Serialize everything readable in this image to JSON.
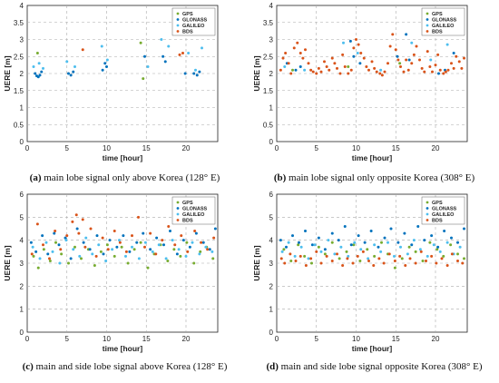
{
  "colors": {
    "GPS": "#77ac30",
    "GLONASS": "#0072bd",
    "GALILEO": "#4dbeee",
    "BDS": "#d95319"
  },
  "chart_data": [
    {
      "type": "scatter",
      "caption_tag": "(a)",
      "caption_text": " main lobe signal only above Korea (128° E)",
      "xlabel": "time [hour]",
      "ylabel": "UERE [m]",
      "xlim": [
        0,
        24
      ],
      "ylim": [
        0,
        4
      ],
      "xticks": [
        0,
        5,
        10,
        15,
        20
      ],
      "yticks": [
        0,
        0.5,
        1,
        1.5,
        2,
        2.5,
        3,
        3.5,
        4
      ],
      "grid": true,
      "legend_position": "top-right",
      "series": [
        {
          "name": "GPS",
          "x": [
            1.3,
            14.3,
            14.6
          ],
          "y": [
            2.6,
            2.9,
            1.85
          ]
        },
        {
          "name": "GLONASS",
          "x": [
            1.0,
            1.2,
            1.4,
            1.6,
            1.8,
            5.2,
            5.5,
            5.8,
            9.5,
            9.8,
            10.0,
            14.8,
            17.1,
            17.4,
            19.9,
            21.0,
            21.4,
            21.7
          ],
          "y": [
            2.0,
            1.93,
            1.9,
            1.95,
            2.05,
            2.0,
            1.95,
            2.05,
            2.1,
            2.3,
            2.2,
            2.5,
            2.5,
            2.35,
            2.0,
            2.0,
            1.95,
            2.05
          ]
        },
        {
          "name": "GALILEO",
          "x": [
            0.8,
            1.5,
            2.0,
            5.0,
            6.0,
            9.4,
            10.1,
            15.2,
            16.9,
            17.8,
            20.3,
            21.2,
            22.0
          ],
          "y": [
            2.2,
            2.3,
            2.15,
            2.35,
            2.2,
            2.8,
            2.4,
            2.2,
            3.0,
            2.8,
            2.6,
            2.1,
            2.75
          ]
        },
        {
          "name": "BDS",
          "x": [
            7.0,
            19.2,
            19.6
          ],
          "y": [
            2.7,
            2.55,
            2.6
          ]
        }
      ]
    },
    {
      "type": "scatter",
      "caption_tag": "(b)",
      "caption_text": " main lobe signal only opposite Korea (308° E)",
      "xlabel": "time [hour]",
      "ylabel": "UERE [m]",
      "xlim": [
        0,
        24
      ],
      "ylim": [
        0,
        4
      ],
      "xticks": [
        0,
        5,
        10,
        15,
        20
      ],
      "yticks": [
        0,
        0.5,
        1,
        1.5,
        2,
        2.5,
        3,
        3.5,
        4
      ],
      "grid": true,
      "legend_position": "top-right",
      "series": [
        {
          "name": "GPS",
          "x": [
            2.0,
            9.0,
            15.5
          ],
          "y": [
            2.1,
            2.2,
            2.3
          ]
        },
        {
          "name": "GLONASS",
          "x": [
            1.3,
            2.4,
            3.0,
            9.3,
            9.7,
            10.5,
            15.2,
            16.3,
            16.7,
            20.4,
            21.2,
            22.3
          ],
          "y": [
            2.3,
            2.1,
            2.2,
            2.95,
            2.5,
            2.3,
            2.5,
            3.15,
            2.4,
            2.0,
            2.1,
            2.6
          ]
        },
        {
          "name": "GALILEO",
          "x": [
            1.0,
            3.5,
            8.4,
            10.2,
            13.1,
            17.0,
            19.4,
            21.5
          ],
          "y": [
            2.2,
            2.1,
            2.9,
            2.6,
            2.1,
            2.9,
            2.4,
            2.85
          ]
        },
        {
          "name": "BDS",
          "x": [
            0.5,
            0.8,
            1.1,
            1.5,
            1.8,
            2.2,
            2.6,
            3.0,
            3.3,
            3.6,
            4.0,
            4.3,
            4.6,
            5.0,
            5.3,
            5.6,
            6.0,
            6.3,
            6.6,
            7.0,
            7.3,
            7.6,
            8.0,
            8.3,
            8.6,
            9.0,
            9.4,
            9.7,
            10.0,
            10.3,
            10.6,
            11.0,
            11.3,
            11.6,
            12.0,
            12.3,
            12.6,
            13.0,
            13.3,
            13.6,
            14.0,
            14.3,
            14.6,
            15.0,
            15.3,
            15.6,
            16.0,
            16.3,
            16.6,
            17.0,
            17.3,
            17.6,
            18.0,
            18.3,
            18.6,
            19.0,
            19.3,
            19.6,
            20.0,
            20.3,
            20.6,
            21.0,
            21.3,
            21.6,
            22.0,
            22.3,
            22.6,
            23.0,
            23.3,
            23.6
          ],
          "y": [
            2.1,
            2.45,
            2.6,
            2.3,
            2.0,
            2.75,
            2.9,
            2.6,
            2.45,
            2.7,
            2.3,
            2.1,
            2.05,
            2.0,
            2.15,
            2.05,
            2.35,
            2.2,
            2.1,
            2.45,
            2.3,
            2.15,
            2.0,
            2.55,
            2.2,
            2.0,
            2.1,
            2.75,
            3.0,
            2.85,
            2.6,
            2.45,
            2.2,
            2.1,
            2.35,
            2.15,
            2.05,
            2.0,
            1.95,
            2.05,
            2.3,
            2.8,
            3.15,
            2.7,
            2.4,
            2.2,
            2.05,
            2.4,
            2.1,
            2.3,
            2.55,
            2.8,
            2.4,
            2.15,
            2.05,
            2.65,
            2.2,
            2.05,
            2.25,
            2.55,
            2.1,
            2.0,
            2.05,
            2.1,
            2.3,
            2.15,
            2.5,
            2.35,
            2.15,
            2.45
          ]
        }
      ]
    },
    {
      "type": "scatter",
      "caption_tag": "(c)",
      "caption_text": " main and side lobe signal above Korea (128° E)",
      "xlabel": "time [hour]",
      "ylabel": "UERE [m]",
      "xlim": [
        0,
        24
      ],
      "ylim": [
        0,
        6
      ],
      "xticks": [
        0,
        5,
        10,
        15,
        20
      ],
      "yticks": [
        0,
        1,
        2,
        3,
        4,
        5,
        6
      ],
      "grid": true,
      "legend_position": "top-right",
      "series": [
        {
          "name": "GPS",
          "x": [
            0.8,
            1.4,
            2.1,
            2.9,
            3.6,
            4.3,
            5.2,
            6.0,
            6.8,
            7.7,
            8.5,
            9.3,
            10.1,
            11.0,
            11.9,
            12.7,
            13.5,
            14.3,
            15.2,
            16.0,
            16.8,
            17.7,
            18.5,
            19.3,
            20.1,
            21.0,
            21.8,
            22.6,
            23.4
          ],
          "y": [
            3.3,
            2.8,
            3.6,
            3.1,
            3.9,
            3.4,
            3.0,
            3.7,
            3.2,
            3.6,
            2.9,
            3.5,
            3.8,
            3.3,
            3.7,
            3.0,
            3.6,
            3.9,
            2.8,
            3.4,
            3.8,
            3.1,
            3.6,
            3.3,
            3.9,
            3.0,
            3.5,
            3.7,
            3.2
          ]
        },
        {
          "name": "GLONASS",
          "x": [
            0.5,
            1.1,
            1.9,
            2.6,
            3.4,
            4.0,
            4.8,
            5.5,
            6.3,
            7.1,
            7.9,
            8.8,
            9.6,
            10.4,
            11.3,
            12.1,
            12.9,
            13.8,
            14.6,
            15.5,
            16.3,
            17.2,
            18.0,
            18.9,
            19.7,
            20.5,
            21.3,
            22.2,
            23.0,
            23.7
          ],
          "y": [
            3.9,
            3.5,
            4.2,
            3.4,
            4.3,
            3.8,
            4.1,
            3.2,
            4.5,
            3.9,
            3.6,
            4.2,
            3.4,
            4.0,
            3.7,
            4.2,
            3.5,
            3.9,
            4.3,
            3.6,
            4.1,
            3.8,
            4.4,
            3.4,
            4.0,
            3.7,
            4.3,
            3.9,
            3.6,
            4.5
          ]
        },
        {
          "name": "GALILEO",
          "x": [
            0.7,
            1.6,
            2.4,
            3.2,
            4.1,
            4.9,
            5.8,
            6.6,
            7.4,
            8.2,
            9.0,
            9.9,
            10.7,
            11.6,
            12.4,
            13.2,
            14.1,
            14.9,
            15.8,
            16.6,
            17.5,
            18.3,
            19.1,
            20.0,
            20.8,
            21.7,
            22.5,
            23.3
          ],
          "y": [
            3.7,
            3.2,
            3.9,
            3.5,
            3.0,
            4.0,
            3.6,
            3.3,
            4.1,
            3.4,
            3.8,
            3.1,
            3.6,
            4.0,
            3.3,
            3.7,
            3.2,
            3.9,
            3.5,
            3.8,
            3.2,
            4.0,
            3.6,
            3.3,
            3.9,
            3.4,
            3.7,
            3.5
          ]
        },
        {
          "name": "BDS",
          "x": [
            0.6,
            1.3,
            2.0,
            2.8,
            3.5,
            4.2,
            5.0,
            5.7,
            6.2,
            6.5,
            7.0,
            7.3,
            8.0,
            8.7,
            9.5,
            10.2,
            11.0,
            11.7,
            12.5,
            13.2,
            14.0,
            14.8,
            15.5,
            16.2,
            17.0,
            17.8,
            18.6,
            19.4,
            20.2,
            21.1,
            21.9,
            22.7,
            23.5
          ],
          "y": [
            3.4,
            4.7,
            3.8,
            3.2,
            4.4,
            3.6,
            4.2,
            4.8,
            5.1,
            4.3,
            4.9,
            3.7,
            4.5,
            3.3,
            4.1,
            3.6,
            4.4,
            3.9,
            3.5,
            4.2,
            5.0,
            3.7,
            4.3,
            3.4,
            4.0,
            4.6,
            3.8,
            4.2,
            3.5,
            4.4,
            3.9,
            3.6,
            4.1
          ]
        }
      ]
    },
    {
      "type": "scatter",
      "caption_tag": "(d)",
      "caption_text": " main and side lobe signal opposite Korea (308° E)",
      "xlabel": "time [hour]",
      "ylabel": "UERE [m]",
      "xlim": [
        0,
        24
      ],
      "ylim": [
        0,
        6
      ],
      "xticks": [
        0,
        5,
        10,
        15,
        20
      ],
      "yticks": [
        0,
        1,
        2,
        3,
        4,
        5,
        6
      ],
      "grid": true,
      "legend_position": "top-right",
      "series": [
        {
          "name": "GPS",
          "x": [
            0.9,
            1.8,
            2.7,
            3.5,
            4.4,
            5.3,
            6.1,
            7.0,
            7.9,
            8.8,
            9.7,
            10.5,
            11.4,
            12.3,
            13.2,
            14.0,
            14.9,
            15.8,
            16.7,
            17.5,
            18.4,
            19.3,
            20.2,
            21.0,
            21.9,
            22.8,
            23.6
          ],
          "y": [
            3.6,
            3.1,
            3.8,
            3.3,
            3.0,
            3.7,
            3.4,
            3.9,
            3.2,
            3.5,
            3.8,
            3.1,
            3.6,
            3.3,
            3.9,
            3.4,
            2.8,
            3.2,
            3.7,
            3.5,
            3.1,
            3.9,
            3.6,
            3.3,
            3.8,
            3.4,
            3.2
          ]
        },
        {
          "name": "GLONASS",
          "x": [
            0.5,
            1.2,
            2.0,
            2.8,
            3.6,
            4.5,
            5.3,
            6.1,
            7.0,
            7.8,
            8.6,
            9.4,
            10.3,
            11.1,
            11.9,
            12.8,
            13.6,
            14.4,
            15.3,
            16.1,
            17.0,
            17.8,
            18.6,
            19.5,
            20.3,
            21.1,
            22.0,
            22.8,
            23.6
          ],
          "y": [
            4.0,
            3.7,
            4.2,
            3.9,
            4.4,
            3.8,
            4.1,
            3.6,
            4.3,
            4.0,
            4.6,
            3.8,
            4.2,
            3.9,
            4.4,
            3.7,
            4.1,
            4.5,
            3.9,
            4.3,
            3.8,
            4.6,
            4.0,
            4.2,
            3.7,
            4.4,
            4.1,
            3.9,
            4.5
          ]
        },
        {
          "name": "GALILEO",
          "x": [
            0.7,
            1.5,
            2.3,
            3.1,
            4.0,
            4.8,
            5.6,
            6.5,
            7.3,
            8.1,
            9.0,
            9.8,
            10.6,
            11.5,
            12.3,
            13.1,
            14.0,
            14.8,
            15.6,
            16.5,
            17.3,
            18.1,
            19.0,
            19.8,
            20.6,
            21.5,
            22.3,
            23.1
          ],
          "y": [
            3.5,
            3.9,
            3.3,
            3.7,
            3.2,
            3.8,
            3.5,
            4.0,
            3.4,
            3.7,
            3.3,
            3.9,
            3.6,
            3.2,
            3.8,
            3.5,
            3.9,
            3.3,
            3.7,
            3.4,
            4.0,
            3.6,
            3.3,
            3.8,
            3.5,
            3.9,
            3.4,
            3.7
          ]
        },
        {
          "name": "BDS",
          "x": [
            0.6,
            1.0,
            1.7,
            2.4,
            3.0,
            3.7,
            4.3,
            5.0,
            5.6,
            6.3,
            7.0,
            7.6,
            8.3,
            8.9,
            9.6,
            10.2,
            10.9,
            11.6,
            12.2,
            12.9,
            13.5,
            14.2,
            14.9,
            15.5,
            16.2,
            16.8,
            17.5,
            18.2,
            18.8,
            19.5,
            20.1,
            20.8,
            21.5,
            22.1,
            22.8,
            23.4
          ],
          "y": [
            3.2,
            3.0,
            3.4,
            3.1,
            3.3,
            2.9,
            3.2,
            3.5,
            3.0,
            3.3,
            3.1,
            3.4,
            2.9,
            3.2,
            3.0,
            3.3,
            3.5,
            3.1,
            2.9,
            3.2,
            3.0,
            3.4,
            3.1,
            3.3,
            2.9,
            3.2,
            3.0,
            3.5,
            3.1,
            3.3,
            3.0,
            3.2,
            2.9,
            3.4,
            3.1,
            3.0
          ]
        }
      ]
    }
  ]
}
